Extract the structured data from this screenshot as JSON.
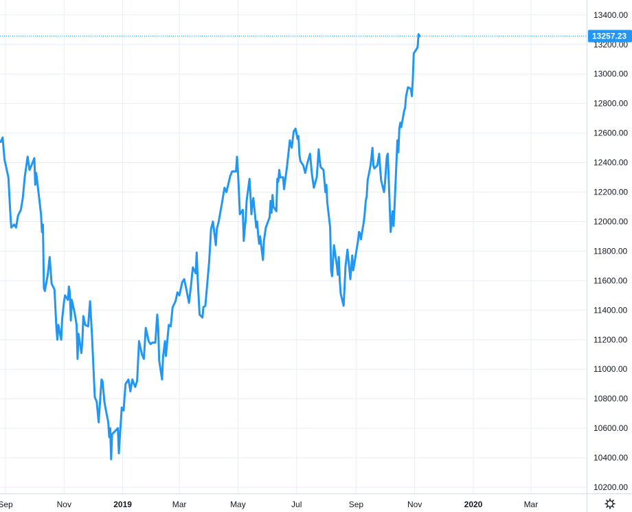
{
  "colors": {
    "line": "#2196f3",
    "grid": "#e8edf5",
    "badge": "#2196f3",
    "text": "#131722",
    "axis_line": "#d6dce6"
  },
  "current_price_label": "13257.23",
  "settings_icon": "gear-icon",
  "chart_data": {
    "type": "line",
    "title": "",
    "xlabel": "",
    "ylabel": "",
    "ylim": [
      10160,
      13430
    ],
    "grid": true,
    "y_ticks": [
      "10200.00",
      "10400.00",
      "10600.00",
      "10800.00",
      "11000.00",
      "11200.00",
      "11400.00",
      "11600.00",
      "11800.00",
      "12000.00",
      "12200.00",
      "12400.00",
      "12600.00",
      "12800.00",
      "13000.00",
      "13200.00",
      "13400.00"
    ],
    "x_ticks": [
      {
        "label": "Sep",
        "date": "2018-09-01",
        "bold": false
      },
      {
        "label": "Nov",
        "date": "2018-11-01",
        "bold": false
      },
      {
        "label": "2019",
        "date": "2019-01-01",
        "bold": true
      },
      {
        "label": "Mar",
        "date": "2019-03-01",
        "bold": false
      },
      {
        "label": "May",
        "date": "2019-05-01",
        "bold": false
      },
      {
        "label": "Jul",
        "date": "2019-07-01",
        "bold": false
      },
      {
        "label": "Sep",
        "date": "2019-09-01",
        "bold": false
      },
      {
        "label": "Nov",
        "date": "2019-11-01",
        "bold": false
      },
      {
        "label": "2020",
        "date": "2020-01-01",
        "bold": true
      },
      {
        "label": "Mar",
        "date": "2020-03-01",
        "bold": false
      }
    ],
    "last_value": 13257.23,
    "series": [
      {
        "points": [
          [
            "2018-08-27",
            12540
          ],
          [
            "2018-08-29",
            12570
          ],
          [
            "2018-08-31",
            12420
          ],
          [
            "2018-09-04",
            12300
          ],
          [
            "2018-09-06",
            12060
          ],
          [
            "2018-09-07",
            11960
          ],
          [
            "2018-09-10",
            11980
          ],
          [
            "2018-09-12",
            11960
          ],
          [
            "2018-09-14",
            12040
          ],
          [
            "2018-09-17",
            12080
          ],
          [
            "2018-09-19",
            12160
          ],
          [
            "2018-09-21",
            12300
          ],
          [
            "2018-09-24",
            12440
          ],
          [
            "2018-09-26",
            12350
          ],
          [
            "2018-09-28",
            12380
          ],
          [
            "2018-10-01",
            12430
          ],
          [
            "2018-10-02",
            12250
          ],
          [
            "2018-10-03",
            12330
          ],
          [
            "2018-10-05",
            12220
          ],
          [
            "2018-10-08",
            12050
          ],
          [
            "2018-10-09",
            11930
          ],
          [
            "2018-10-10",
            11980
          ],
          [
            "2018-10-11",
            11550
          ],
          [
            "2018-10-12",
            11530
          ],
          [
            "2018-10-15",
            11640
          ],
          [
            "2018-10-17",
            11760
          ],
          [
            "2018-10-19",
            11580
          ],
          [
            "2018-10-22",
            11540
          ],
          [
            "2018-10-24",
            11280
          ],
          [
            "2018-10-25",
            11200
          ],
          [
            "2018-10-26",
            11300
          ],
          [
            "2018-10-29",
            11200
          ],
          [
            "2018-10-30",
            11340
          ],
          [
            "2018-11-01",
            11460
          ],
          [
            "2018-11-02",
            11500
          ],
          [
            "2018-11-05",
            11470
          ],
          [
            "2018-11-06",
            11560
          ],
          [
            "2018-11-07",
            11520
          ],
          [
            "2018-11-08",
            11330
          ],
          [
            "2018-11-09",
            11470
          ],
          [
            "2018-11-12",
            11380
          ],
          [
            "2018-11-14",
            11300
          ],
          [
            "2018-11-15",
            11070
          ],
          [
            "2018-11-16",
            11240
          ],
          [
            "2018-11-19",
            11110
          ],
          [
            "2018-11-20",
            11190
          ],
          [
            "2018-11-21",
            11360
          ],
          [
            "2018-11-23",
            11300
          ],
          [
            "2018-11-26",
            11290
          ],
          [
            "2018-11-28",
            11460
          ],
          [
            "2018-11-30",
            11230
          ],
          [
            "2018-12-03",
            10810
          ],
          [
            "2018-12-05",
            10780
          ],
          [
            "2018-12-07",
            10640
          ],
          [
            "2018-12-10",
            10930
          ],
          [
            "2018-12-11",
            10920
          ],
          [
            "2018-12-13",
            10780
          ],
          [
            "2018-12-14",
            10740
          ],
          [
            "2018-12-17",
            10640
          ],
          [
            "2018-12-18",
            10540
          ],
          [
            "2018-12-19",
            10600
          ],
          [
            "2018-12-20",
            10390
          ],
          [
            "2018-12-21",
            10560
          ],
          [
            "2018-12-27",
            10600
          ],
          [
            "2018-12-28",
            10430
          ],
          [
            "2018-12-31",
            10740
          ],
          [
            "2019-01-02",
            10720
          ],
          [
            "2019-01-03",
            10820
          ],
          [
            "2019-01-04",
            10900
          ],
          [
            "2019-01-07",
            10930
          ],
          [
            "2019-01-09",
            10850
          ],
          [
            "2019-01-11",
            10930
          ],
          [
            "2019-01-14",
            10880
          ],
          [
            "2019-01-16",
            10920
          ],
          [
            "2019-01-18",
            11190
          ],
          [
            "2019-01-21",
            11100
          ],
          [
            "2019-01-23",
            11070
          ],
          [
            "2019-01-25",
            11280
          ],
          [
            "2019-01-28",
            11190
          ],
          [
            "2019-01-30",
            11170
          ],
          [
            "2019-02-01",
            11180
          ],
          [
            "2019-02-04",
            11180
          ],
          [
            "2019-02-06",
            11370
          ],
          [
            "2019-02-07",
            11280
          ],
          [
            "2019-02-08",
            11060
          ],
          [
            "2019-02-11",
            10930
          ],
          [
            "2019-02-12",
            11080
          ],
          [
            "2019-02-14",
            11190
          ],
          [
            "2019-02-15",
            11090
          ],
          [
            "2019-02-18",
            11300
          ],
          [
            "2019-02-20",
            11290
          ],
          [
            "2019-02-22",
            11420
          ],
          [
            "2019-02-25",
            11460
          ],
          [
            "2019-02-27",
            11520
          ],
          [
            "2019-03-01",
            11500
          ],
          [
            "2019-03-04",
            11590
          ],
          [
            "2019-03-06",
            11610
          ],
          [
            "2019-03-08",
            11550
          ],
          [
            "2019-03-11",
            11450
          ],
          [
            "2019-03-13",
            11560
          ],
          [
            "2019-03-15",
            11690
          ],
          [
            "2019-03-18",
            11650
          ],
          [
            "2019-03-19",
            11790
          ],
          [
            "2019-03-20",
            11620
          ],
          [
            "2019-03-22",
            11370
          ],
          [
            "2019-03-25",
            11350
          ],
          [
            "2019-03-26",
            11420
          ],
          [
            "2019-03-28",
            11430
          ],
          [
            "2019-04-01",
            11730
          ],
          [
            "2019-04-03",
            11950
          ],
          [
            "2019-04-05",
            12000
          ],
          [
            "2019-04-08",
            11840
          ],
          [
            "2019-04-09",
            11950
          ],
          [
            "2019-04-11",
            12000
          ],
          [
            "2019-04-15",
            12150
          ],
          [
            "2019-04-17",
            12230
          ],
          [
            "2019-04-19",
            12200
          ],
          [
            "2019-04-23",
            12310
          ],
          [
            "2019-04-25",
            12340
          ],
          [
            "2019-04-29",
            12340
          ],
          [
            "2019-04-30",
            12440
          ],
          [
            "2019-05-01",
            12340
          ],
          [
            "2019-05-02",
            12200
          ],
          [
            "2019-05-03",
            12050
          ],
          [
            "2019-05-06",
            12080
          ],
          [
            "2019-05-07",
            11870
          ],
          [
            "2019-05-08",
            11950
          ],
          [
            "2019-05-09",
            12010
          ],
          [
            "2019-05-10",
            12140
          ],
          [
            "2019-05-13",
            12290
          ],
          [
            "2019-05-14",
            12180
          ],
          [
            "2019-05-15",
            12050
          ],
          [
            "2019-05-16",
            12120
          ],
          [
            "2019-05-17",
            12160
          ],
          [
            "2019-05-20",
            11960
          ],
          [
            "2019-05-21",
            12000
          ],
          [
            "2019-05-22",
            11910
          ],
          [
            "2019-05-23",
            11850
          ],
          [
            "2019-05-24",
            11900
          ],
          [
            "2019-05-27",
            11740
          ],
          [
            "2019-05-28",
            11870
          ],
          [
            "2019-05-30",
            11960
          ],
          [
            "2019-06-03",
            12030
          ],
          [
            "2019-06-04",
            12140
          ],
          [
            "2019-06-05",
            12060
          ],
          [
            "2019-06-06",
            12180
          ],
          [
            "2019-06-07",
            12100
          ],
          [
            "2019-06-10",
            12070
          ],
          [
            "2019-06-11",
            12290
          ],
          [
            "2019-06-12",
            12270
          ],
          [
            "2019-06-13",
            12350
          ],
          [
            "2019-06-14",
            12300
          ],
          [
            "2019-06-17",
            12300
          ],
          [
            "2019-06-18",
            12220
          ],
          [
            "2019-06-19",
            12270
          ],
          [
            "2019-06-21",
            12370
          ],
          [
            "2019-06-24",
            12550
          ],
          [
            "2019-06-26",
            12500
          ],
          [
            "2019-06-28",
            12610
          ],
          [
            "2019-06-30",
            12630
          ],
          [
            "2019-07-02",
            12560
          ],
          [
            "2019-07-03",
            12580
          ],
          [
            "2019-07-04",
            12450
          ],
          [
            "2019-07-05",
            12410
          ],
          [
            "2019-07-08",
            12380
          ],
          [
            "2019-07-10",
            12330
          ],
          [
            "2019-07-12",
            12390
          ],
          [
            "2019-07-15",
            12460
          ],
          [
            "2019-07-17",
            12320
          ],
          [
            "2019-07-19",
            12230
          ],
          [
            "2019-07-22",
            12300
          ],
          [
            "2019-07-24",
            12490
          ],
          [
            "2019-07-25",
            12420
          ],
          [
            "2019-07-26",
            12370
          ],
          [
            "2019-07-29",
            12350
          ],
          [
            "2019-07-31",
            12200
          ],
          [
            "2019-08-01",
            12250
          ],
          [
            "2019-08-02",
            12130
          ],
          [
            "2019-08-05",
            11960
          ],
          [
            "2019-08-06",
            11670
          ],
          [
            "2019-08-07",
            11630
          ],
          [
            "2019-08-09",
            11840
          ],
          [
            "2019-08-12",
            11700
          ],
          [
            "2019-08-13",
            11640
          ],
          [
            "2019-08-14",
            11760
          ],
          [
            "2019-08-15",
            11600
          ],
          [
            "2019-08-16",
            11510
          ],
          [
            "2019-08-19",
            11430
          ],
          [
            "2019-08-20",
            11560
          ],
          [
            "2019-08-21",
            11700
          ],
          [
            "2019-08-23",
            11810
          ],
          [
            "2019-08-26",
            11610
          ],
          [
            "2019-08-27",
            11690
          ],
          [
            "2019-08-28",
            11770
          ],
          [
            "2019-08-29",
            11670
          ],
          [
            "2019-08-31",
            11750
          ],
          [
            "2019-09-03",
            11870
          ],
          [
            "2019-09-04",
            11930
          ],
          [
            "2019-09-05",
            11920
          ],
          [
            "2019-09-06",
            11880
          ],
          [
            "2019-09-09",
            12000
          ],
          [
            "2019-09-10",
            12060
          ],
          [
            "2019-09-11",
            12140
          ],
          [
            "2019-09-12",
            12170
          ],
          [
            "2019-09-13",
            12280
          ],
          [
            "2019-09-16",
            12380
          ],
          [
            "2019-09-18",
            12500
          ],
          [
            "2019-09-19",
            12380
          ],
          [
            "2019-09-20",
            12360
          ],
          [
            "2019-09-23",
            12380
          ],
          [
            "2019-09-25",
            12460
          ],
          [
            "2019-09-26",
            12360
          ],
          [
            "2019-09-27",
            12280
          ],
          [
            "2019-09-30",
            12200
          ],
          [
            "2019-10-01",
            12260
          ],
          [
            "2019-10-02",
            12350
          ],
          [
            "2019-10-03",
            12440
          ],
          [
            "2019-10-04",
            12460
          ],
          [
            "2019-10-07",
            11930
          ],
          [
            "2019-10-08",
            12000
          ],
          [
            "2019-10-09",
            12070
          ],
          [
            "2019-10-10",
            11970
          ],
          [
            "2019-10-11",
            12100
          ],
          [
            "2019-10-14",
            12550
          ],
          [
            "2019-10-15",
            12470
          ],
          [
            "2019-10-16",
            12630
          ],
          [
            "2019-10-17",
            12670
          ],
          [
            "2019-10-18",
            12640
          ],
          [
            "2019-10-21",
            12750
          ],
          [
            "2019-10-22",
            12770
          ],
          [
            "2019-10-23",
            12850
          ],
          [
            "2019-10-24",
            12880
          ],
          [
            "2019-10-25",
            12910
          ],
          [
            "2019-10-28",
            12900
          ],
          [
            "2019-10-29",
            12850
          ],
          [
            "2019-10-30",
            12960
          ],
          [
            "2019-10-31",
            13140
          ],
          [
            "2019-11-01",
            13150
          ],
          [
            "2019-11-04",
            13180
          ],
          [
            "2019-11-05",
            13270
          ],
          [
            "2019-11-06",
            13257.23
          ]
        ]
      }
    ]
  }
}
